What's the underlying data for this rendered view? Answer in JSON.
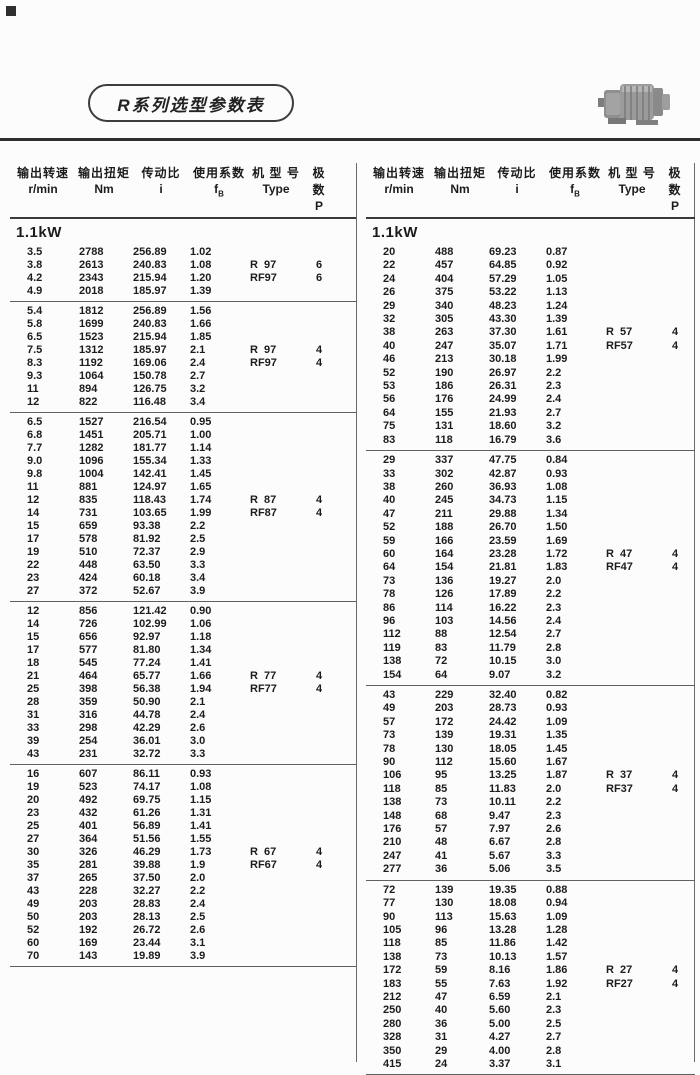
{
  "page": {
    "title": "R系列选型参数表"
  },
  "header": {
    "cols": [
      {
        "zh": "输出转速",
        "unit": "r/min"
      },
      {
        "zh": "输出扭矩",
        "unit": "Nm"
      },
      {
        "zh": "传动比",
        "unit": "i"
      },
      {
        "zh": "使用系数",
        "unit_main": "f",
        "unit_sub": "B"
      },
      {
        "zh": "机 型 号",
        "unit": "Type"
      },
      {
        "zh": "极  数",
        "unit": "P"
      }
    ]
  },
  "table_meta": {
    "fields": [
      "speed-rpm",
      "torque-nm",
      "ratio-i",
      "service-factor",
      "type",
      "poles"
    ]
  },
  "left": {
    "section": "1.1kW",
    "blocks": [
      [
        [
          "3.5",
          "2788",
          "256.89",
          "1.02",
          "",
          ""
        ],
        [
          "3.8",
          "2613",
          "240.83",
          "1.08",
          "R  97",
          "6"
        ],
        [
          "4.2",
          "2343",
          "215.94",
          "1.20",
          "RF97",
          "6"
        ],
        [
          "4.9",
          "2018",
          "185.97",
          "1.39",
          "",
          ""
        ]
      ],
      [
        [
          "5.4",
          "1812",
          "256.89",
          "1.56",
          "",
          ""
        ],
        [
          "5.8",
          "1699",
          "240.83",
          "1.66",
          "",
          ""
        ],
        [
          "6.5",
          "1523",
          "215.94",
          "1.85",
          "",
          ""
        ],
        [
          "7.5",
          "1312",
          "185.97",
          "2.1",
          "R  97",
          "4"
        ],
        [
          "8.3",
          "1192",
          "169.06",
          "2.4",
          "RF97",
          "4"
        ],
        [
          "9.3",
          "1064",
          "150.78",
          "2.7",
          "",
          ""
        ],
        [
          "11",
          "894",
          "126.75",
          "3.2",
          "",
          ""
        ],
        [
          "12",
          "822",
          "116.48",
          "3.4",
          "",
          ""
        ]
      ],
      [
        [
          "6.5",
          "1527",
          "216.54",
          "0.95",
          "",
          ""
        ],
        [
          "6.8",
          "1451",
          "205.71",
          "1.00",
          "",
          ""
        ],
        [
          "7.7",
          "1282",
          "181.77",
          "1.14",
          "",
          ""
        ],
        [
          "9.0",
          "1096",
          "155.34",
          "1.33",
          "",
          ""
        ],
        [
          "9.8",
          "1004",
          "142.41",
          "1.45",
          "",
          ""
        ],
        [
          "11",
          "881",
          "124.97",
          "1.65",
          "",
          ""
        ],
        [
          "12",
          "835",
          "118.43",
          "1.74",
          "R  87",
          "4"
        ],
        [
          "14",
          "731",
          "103.65",
          "1.99",
          "RF87",
          "4"
        ],
        [
          "15",
          "659",
          "93.38",
          "2.2",
          "",
          ""
        ],
        [
          "17",
          "578",
          "81.92",
          "2.5",
          "",
          ""
        ],
        [
          "19",
          "510",
          "72.37",
          "2.9",
          "",
          ""
        ],
        [
          "22",
          "448",
          "63.50",
          "3.3",
          "",
          ""
        ],
        [
          "23",
          "424",
          "60.18",
          "3.4",
          "",
          ""
        ],
        [
          "27",
          "372",
          "52.67",
          "3.9",
          "",
          ""
        ]
      ],
      [
        [
          "12",
          "856",
          "121.42",
          "0.90",
          "",
          ""
        ],
        [
          "14",
          "726",
          "102.99",
          "1.06",
          "",
          ""
        ],
        [
          "15",
          "656",
          "92.97",
          "1.18",
          "",
          ""
        ],
        [
          "17",
          "577",
          "81.80",
          "1.34",
          "",
          ""
        ],
        [
          "18",
          "545",
          "77.24",
          "1.41",
          "",
          ""
        ],
        [
          "21",
          "464",
          "65.77",
          "1.66",
          "R  77",
          "4"
        ],
        [
          "25",
          "398",
          "56.38",
          "1.94",
          "RF77",
          "4"
        ],
        [
          "28",
          "359",
          "50.90",
          "2.1",
          "",
          ""
        ],
        [
          "31",
          "316",
          "44.78",
          "2.4",
          "",
          ""
        ],
        [
          "33",
          "298",
          "42.29",
          "2.6",
          "",
          ""
        ],
        [
          "39",
          "254",
          "36.01",
          "3.0",
          "",
          ""
        ],
        [
          "43",
          "231",
          "32.72",
          "3.3",
          "",
          ""
        ]
      ],
      [
        [
          "16",
          "607",
          "86.11",
          "0.93",
          "",
          ""
        ],
        [
          "19",
          "523",
          "74.17",
          "1.08",
          "",
          ""
        ],
        [
          "20",
          "492",
          "69.75",
          "1.15",
          "",
          ""
        ],
        [
          "23",
          "432",
          "61.26",
          "1.31",
          "",
          ""
        ],
        [
          "25",
          "401",
          "56.89",
          "1.41",
          "",
          ""
        ],
        [
          "27",
          "364",
          "51.56",
          "1.55",
          "",
          ""
        ],
        [
          "30",
          "326",
          "46.29",
          "1.73",
          "R  67",
          "4"
        ],
        [
          "35",
          "281",
          "39.88",
          "1.9",
          "RF67",
          "4"
        ],
        [
          "37",
          "265",
          "37.50",
          "2.0",
          "",
          ""
        ],
        [
          "43",
          "228",
          "32.27",
          "2.2",
          "",
          ""
        ],
        [
          "49",
          "203",
          "28.83",
          "2.4",
          "",
          ""
        ],
        [
          "50",
          "203",
          "28.13",
          "2.5",
          "",
          ""
        ],
        [
          "52",
          "192",
          "26.72",
          "2.6",
          "",
          ""
        ],
        [
          "60",
          "169",
          "23.44",
          "3.1",
          "",
          ""
        ],
        [
          "70",
          "143",
          "19.89",
          "3.9",
          "",
          ""
        ]
      ]
    ]
  },
  "right": {
    "section": "1.1kW",
    "blocks": [
      [
        [
          "20",
          "488",
          "69.23",
          "0.87",
          "",
          ""
        ],
        [
          "22",
          "457",
          "64.85",
          "0.92",
          "",
          ""
        ],
        [
          "24",
          "404",
          "57.29",
          "1.05",
          "",
          ""
        ],
        [
          "26",
          "375",
          "53.22",
          "1.13",
          "",
          ""
        ],
        [
          "29",
          "340",
          "48.23",
          "1.24",
          "",
          ""
        ],
        [
          "32",
          "305",
          "43.30",
          "1.39",
          "",
          ""
        ],
        [
          "38",
          "263",
          "37.30",
          "1.61",
          "R  57",
          "4"
        ],
        [
          "40",
          "247",
          "35.07",
          "1.71",
          "RF57",
          "4"
        ],
        [
          "46",
          "213",
          "30.18",
          "1.99",
          "",
          ""
        ],
        [
          "52",
          "190",
          "26.97",
          "2.2",
          "",
          ""
        ],
        [
          "53",
          "186",
          "26.31",
          "2.3",
          "",
          ""
        ],
        [
          "56",
          "176",
          "24.99",
          "2.4",
          "",
          ""
        ],
        [
          "64",
          "155",
          "21.93",
          "2.7",
          "",
          ""
        ],
        [
          "75",
          "131",
          "18.60",
          "3.2",
          "",
          ""
        ],
        [
          "83",
          "118",
          "16.79",
          "3.6",
          "",
          ""
        ]
      ],
      [
        [
          "29",
          "337",
          "47.75",
          "0.84",
          "",
          ""
        ],
        [
          "33",
          "302",
          "42.87",
          "0.93",
          "",
          ""
        ],
        [
          "38",
          "260",
          "36.93",
          "1.08",
          "",
          ""
        ],
        [
          "40",
          "245",
          "34.73",
          "1.15",
          "",
          ""
        ],
        [
          "47",
          "211",
          "29.88",
          "1.34",
          "",
          ""
        ],
        [
          "52",
          "188",
          "26.70",
          "1.50",
          "",
          ""
        ],
        [
          "59",
          "166",
          "23.59",
          "1.69",
          "",
          ""
        ],
        [
          "60",
          "164",
          "23.28",
          "1.72",
          "R  47",
          "4"
        ],
        [
          "64",
          "154",
          "21.81",
          "1.83",
          "RF47",
          "4"
        ],
        [
          "73",
          "136",
          "19.27",
          "2.0",
          "",
          ""
        ],
        [
          "78",
          "126",
          "17.89",
          "2.2",
          "",
          ""
        ],
        [
          "86",
          "114",
          "16.22",
          "2.3",
          "",
          ""
        ],
        [
          "96",
          "103",
          "14.56",
          "2.4",
          "",
          ""
        ],
        [
          "112",
          "88",
          "12.54",
          "2.7",
          "",
          ""
        ],
        [
          "119",
          "83",
          "11.79",
          "2.8",
          "",
          ""
        ],
        [
          "138",
          "72",
          "10.15",
          "3.0",
          "",
          ""
        ],
        [
          "154",
          "64",
          "9.07",
          "3.2",
          "",
          ""
        ]
      ],
      [
        [
          "43",
          "229",
          "32.40",
          "0.82",
          "",
          ""
        ],
        [
          "49",
          "203",
          "28.73",
          "0.93",
          "",
          ""
        ],
        [
          "57",
          "172",
          "24.42",
          "1.09",
          "",
          ""
        ],
        [
          "73",
          "139",
          "19.31",
          "1.35",
          "",
          ""
        ],
        [
          "78",
          "130",
          "18.05",
          "1.45",
          "",
          ""
        ],
        [
          "90",
          "112",
          "15.60",
          "1.67",
          "",
          ""
        ],
        [
          "106",
          "95",
          "13.25",
          "1.87",
          "R  37",
          "4"
        ],
        [
          "118",
          "85",
          "11.83",
          "2.0",
          "RF37",
          "4"
        ],
        [
          "138",
          "73",
          "10.11",
          "2.2",
          "",
          ""
        ],
        [
          "148",
          "68",
          "9.47",
          "2.3",
          "",
          ""
        ],
        [
          "176",
          "57",
          "7.97",
          "2.6",
          "",
          ""
        ],
        [
          "210",
          "48",
          "6.67",
          "2.8",
          "",
          ""
        ],
        [
          "247",
          "41",
          "5.67",
          "3.3",
          "",
          ""
        ],
        [
          "277",
          "36",
          "5.06",
          "3.5",
          "",
          ""
        ]
      ],
      [
        [
          "72",
          "139",
          "19.35",
          "0.88",
          "",
          ""
        ],
        [
          "77",
          "130",
          "18.08",
          "0.94",
          "",
          ""
        ],
        [
          "90",
          "113",
          "15.63",
          "1.09",
          "",
          ""
        ],
        [
          "105",
          "96",
          "13.28",
          "1.28",
          "",
          ""
        ],
        [
          "118",
          "85",
          "11.86",
          "1.42",
          "",
          ""
        ],
        [
          "138",
          "73",
          "10.13",
          "1.57",
          "",
          ""
        ],
        [
          "172",
          "59",
          "8.16",
          "1.86",
          "R  27",
          "4"
        ],
        [
          "183",
          "55",
          "7.63",
          "1.92",
          "RF27",
          "4"
        ],
        [
          "212",
          "47",
          "6.59",
          "2.1",
          "",
          ""
        ],
        [
          "250",
          "40",
          "5.60",
          "2.3",
          "",
          ""
        ],
        [
          "280",
          "36",
          "5.00",
          "2.5",
          "",
          ""
        ],
        [
          "328",
          "31",
          "4.27",
          "2.7",
          "",
          ""
        ],
        [
          "350",
          "29",
          "4.00",
          "2.8",
          "",
          ""
        ],
        [
          "415",
          "24",
          "3.37",
          "3.1",
          "",
          ""
        ]
      ]
    ]
  }
}
